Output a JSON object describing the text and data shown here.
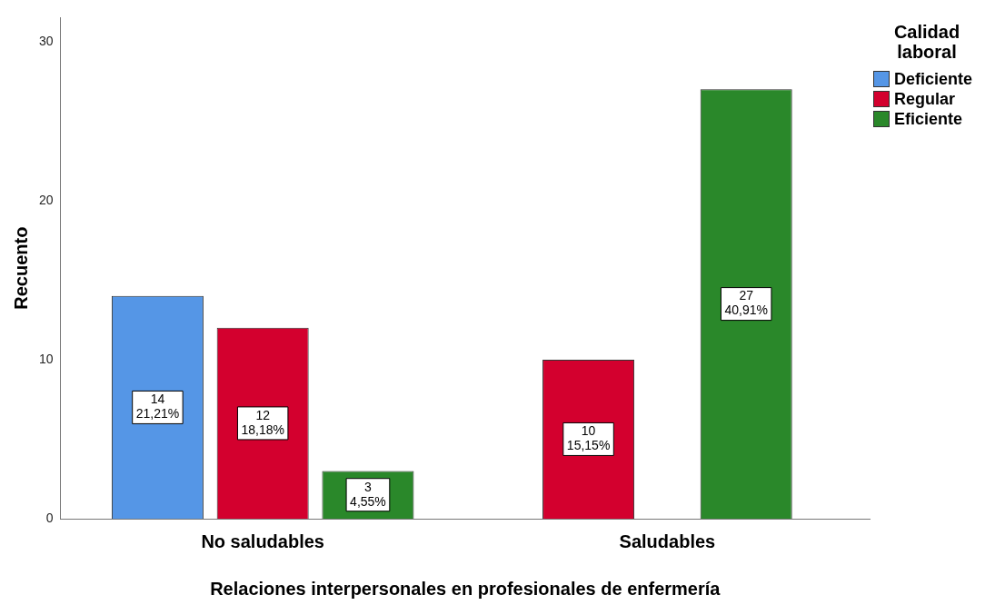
{
  "chart_data": {
    "type": "bar",
    "xlabel": "Relaciones interpersonales en profesionales de enfermería",
    "ylabel": "Recuento",
    "legend_title": "Calidad laboral",
    "categories": [
      "No saludables",
      "Saludables"
    ],
    "series": [
      {
        "name": "Deficiente",
        "color": "#5596e6",
        "values": [
          14,
          null
        ],
        "value_labels": [
          "14\n21,21%",
          null
        ]
      },
      {
        "name": "Regular",
        "color": "#d3002e",
        "values": [
          12,
          10
        ],
        "value_labels": [
          "12\n18,18%",
          "10\n15,15%"
        ]
      },
      {
        "name": "Eficiente",
        "color": "#2a882a",
        "values": [
          3,
          27
        ],
        "value_labels": [
          "3\n4,55%",
          "27\n40,91%"
        ]
      }
    ],
    "ylim": [
      0,
      31.5
    ],
    "yticks": [
      0,
      10,
      20,
      30
    ],
    "grid": false,
    "legend": "top right"
  }
}
